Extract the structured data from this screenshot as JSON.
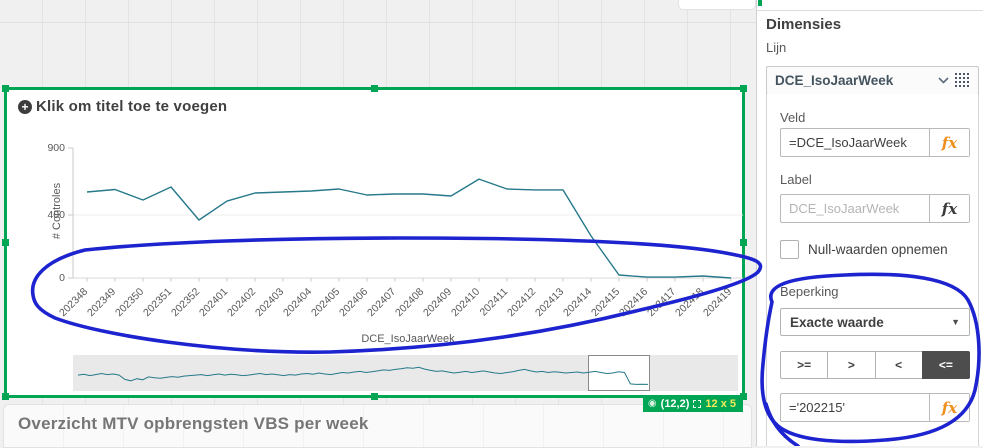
{
  "sheet": {
    "bottom_object_title": "Overzicht MTV opbrengsten VBS per week"
  },
  "chart": {
    "title_placeholder": "Klik om titel toe te voegen",
    "y_axis_label": "# Controles",
    "x_axis_label": "DCE_IsoJaarWeek",
    "badge": {
      "grid_position": "(12,2)",
      "grid_size": "12 x 5"
    }
  },
  "chart_data": [
    {
      "type": "line",
      "title": "",
      "xlabel": "DCE_IsoJaarWeek",
      "ylabel": "# Controles",
      "categories": [
        "202348",
        "202349",
        "202350",
        "202351",
        "202352",
        "202401",
        "202402",
        "202403",
        "202404",
        "202405",
        "202406",
        "202407",
        "202408",
        "202409",
        "202410",
        "202411",
        "202412",
        "202413",
        "202414",
        "202415",
        "202416",
        "202417",
        "202418",
        "202419"
      ],
      "values": [
        572,
        590,
        512,
        609,
        368,
        504,
        564,
        572,
        579,
        594,
        549,
        557,
        557,
        542,
        668,
        594,
        587,
        587,
        267,
        19,
        6,
        6,
        13,
        0
      ],
      "yticks": [
        0,
        400,
        900
      ],
      "ylim": [
        0,
        900
      ],
      "grid": "horizontal-at-400",
      "legend": "none"
    },
    {
      "type": "line",
      "role": "navigator-minimap",
      "values_norm": [
        0.42,
        0.45,
        0.4,
        0.44,
        0.48,
        0.44,
        0.46,
        0.42,
        0.25,
        0.2,
        0.28,
        0.24,
        0.35,
        0.32,
        0.3,
        0.33,
        0.36,
        0.34,
        0.38,
        0.4,
        0.42,
        0.44,
        0.4,
        0.43,
        0.46,
        0.42,
        0.45,
        0.43,
        0.4,
        0.42,
        0.45,
        0.48,
        0.44,
        0.46,
        0.43,
        0.4,
        0.44,
        0.42,
        0.46,
        0.48,
        0.45,
        0.5,
        0.46,
        0.44,
        0.48,
        0.52,
        0.5,
        0.54,
        0.56,
        0.52,
        0.55,
        0.58,
        0.62,
        0.6,
        0.64,
        0.66,
        0.7,
        0.68,
        0.72,
        0.65,
        0.6,
        0.56,
        0.58,
        0.54,
        0.5,
        0.53,
        0.56,
        0.52,
        0.55,
        0.58,
        0.54,
        0.5,
        0.48,
        0.52,
        0.55,
        0.6,
        0.64,
        0.58,
        0.54,
        0.56,
        0.52,
        0.55,
        0.53,
        0.5,
        0.52,
        0.54,
        0.5,
        0.53,
        0.56,
        0.52,
        0.48,
        0.5,
        0.55,
        0.52,
        0.08,
        0.06,
        0.07,
        0.06
      ],
      "selection_window_index_range": [
        87,
        97
      ]
    }
  ],
  "panel": {
    "heading": "Dimensies",
    "subheading": "Lijn",
    "dimension_name": "DCE_IsoJaarWeek",
    "field_label": "Veld",
    "field_value": "=DCE_IsoJaarWeek",
    "label_label": "Label",
    "label_placeholder": "DCE_IsoJaarWeek",
    "fx": "fx",
    "null_values_label": "Null-waarden opnemen",
    "null_values_checked": false,
    "restriction_label": "Beperking",
    "restriction_mode": "Exacte waarde",
    "comparison_operators": [
      {
        "label": ">=",
        "name": "gte",
        "selected": false
      },
      {
        "label": ">",
        "name": "gt",
        "selected": false
      },
      {
        "label": "<",
        "name": "lt",
        "selected": false
      },
      {
        "label": "<=",
        "name": "lte",
        "selected": true
      }
    ],
    "restriction_value": "='202215'"
  },
  "annotations": {
    "color": "#1c23cf",
    "paths": [
      "M 33 295 C 30 278 45 260 85 250 C 160 242 280 238 400 238 C 540 238 660 242 720 252 C 755 258 766 262 758 272 C 748 282 700 296 640 310 C 560 330 460 348 330 352 C 220 354 100 335 55 318 C 38 310 34 303 33 295 Z",
      "M 772 302 C 765 286 788 277 845 275 C 905 272 955 278 968 300 C 980 322 982 358 975 390 C 968 418 940 436 885 440 C 835 444 795 440 778 426 C 764 414 760 392 763 364 C 765 342 768 320 772 302 Z",
      "M 766 404 C 771 422 782 436 798 446"
    ]
  },
  "colors": {
    "selection_green": "#00a653",
    "series_teal": "#26798a",
    "annotation_blue": "#1c23cf",
    "badge_text_yellow": "#f2ea5a"
  }
}
